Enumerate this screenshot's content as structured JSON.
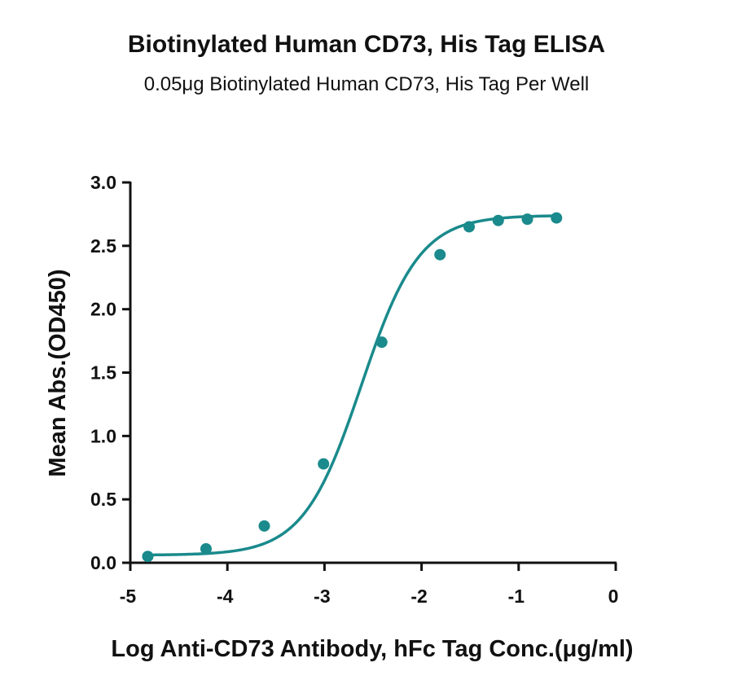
{
  "chart_data": {
    "type": "scatter",
    "title": "Biotinylated Human CD73, His Tag ELISA",
    "subtitle": "0.05μg Biotinylated Human CD73, His Tag Per Well",
    "xlabel": "Log Anti-CD73 Antibody, hFc Tag Conc.(μg/ml)",
    "ylabel": "Mean Abs.(OD450)",
    "xlim": [
      -5,
      0
    ],
    "ylim": [
      0,
      3.0
    ],
    "x_ticks": [
      -5,
      -4,
      -3,
      -2,
      -1,
      0
    ],
    "x_tick_labels": [
      "-5",
      "-4",
      "-3",
      "-2",
      "-1",
      "0"
    ],
    "y_ticks": [
      0,
      0.5,
      1.0,
      1.5,
      2.0,
      2.5,
      3.0
    ],
    "y_tick_labels": [
      "0.0",
      "0.5",
      "1.0",
      "1.5",
      "2.0",
      "2.5",
      "3.0"
    ],
    "grid": false,
    "legend": "none",
    "color": "#1a8a8c",
    "series": [
      {
        "x": [
          -4.82,
          -4.22,
          -3.62,
          -3.01,
          -2.41,
          -1.81,
          -1.51,
          -1.21,
          -0.91,
          -0.61
        ],
        "y": [
          0.05,
          0.11,
          0.29,
          0.78,
          1.74,
          2.43,
          2.65,
          2.7,
          2.71,
          2.72
        ]
      }
    ],
    "fit": {
      "model": "4PL",
      "bottom": 0.06,
      "top": 2.74,
      "logEC50": -2.62,
      "hill": 1.45
    }
  }
}
